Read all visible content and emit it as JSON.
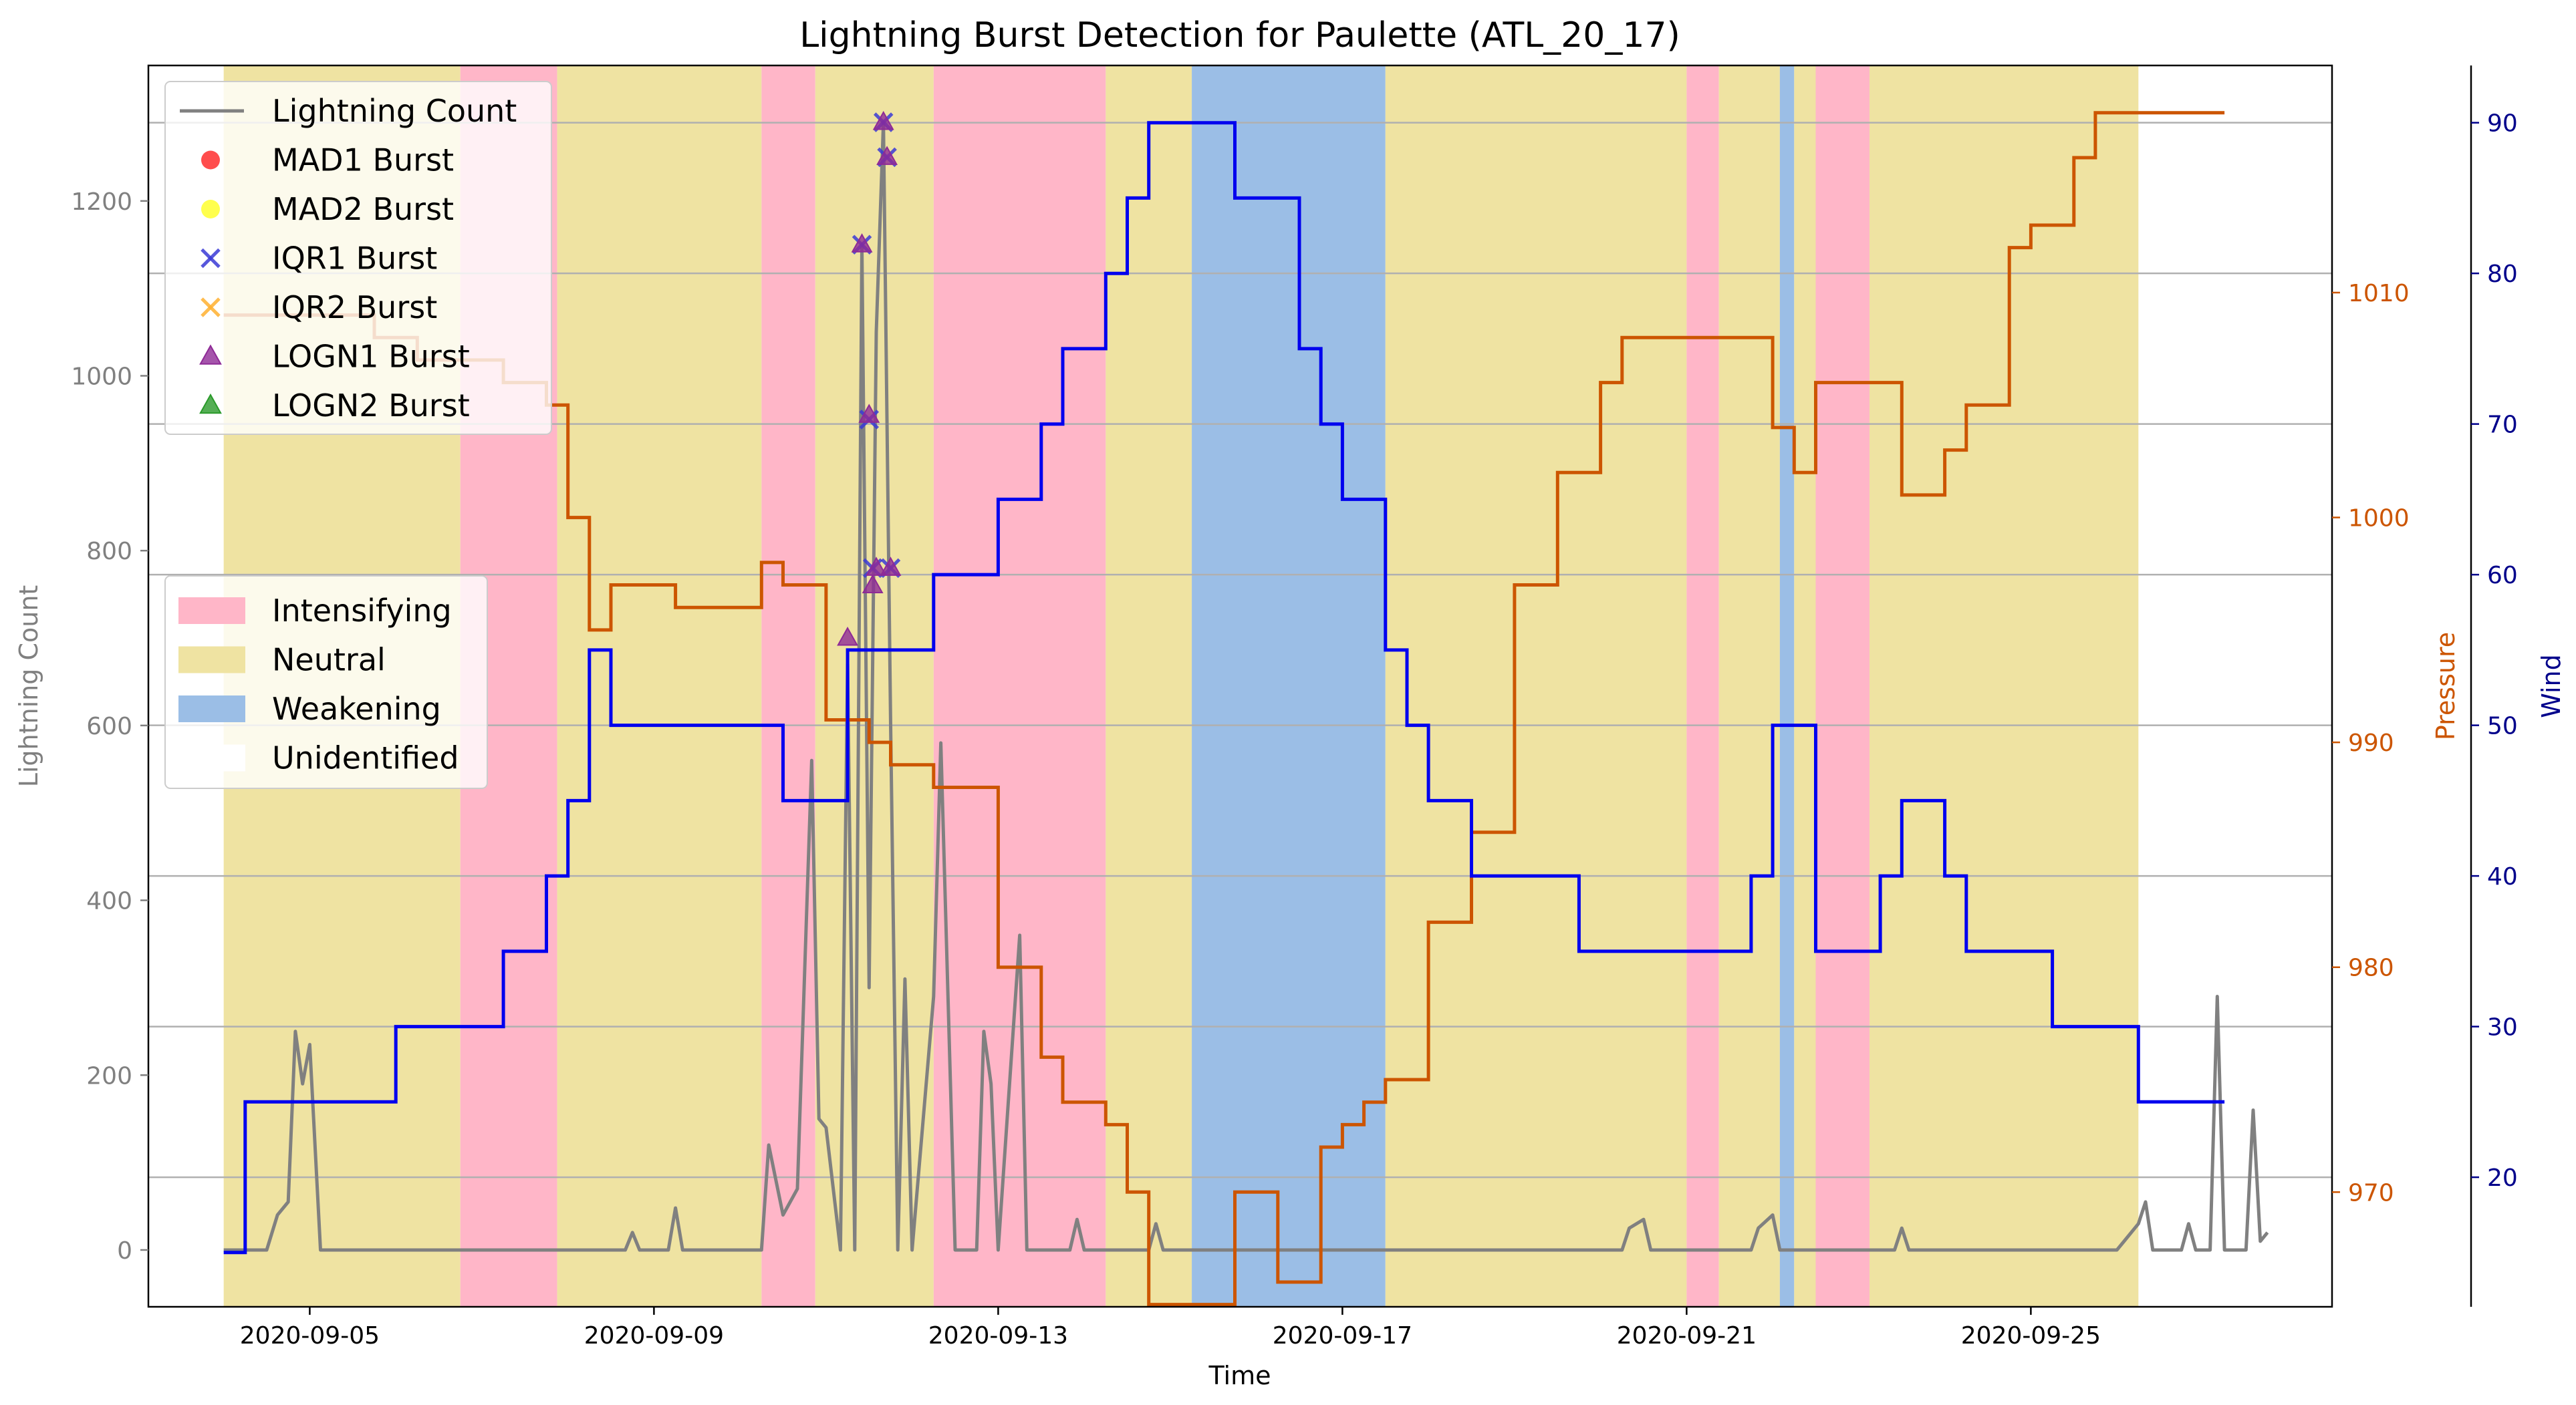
{
  "chart_data": {
    "type": "line",
    "title": "Lightning Burst Detection for Paulette (ATL_20_17)",
    "xlabel": "Time",
    "ylabel_left": "Lightning Count",
    "ylabel_pressure": "Pressure",
    "ylabel_wind": "Wind",
    "x_range": [
      "2020-09-03 03:00",
      "2020-09-28 12:00"
    ],
    "x_ticks": [
      "2020-09-05",
      "2020-09-09",
      "2020-09-13",
      "2020-09-17",
      "2020-09-21",
      "2020-09-25"
    ],
    "y_left": {
      "range": [
        -65,
        1355
      ],
      "ticks": [
        0,
        200,
        400,
        600,
        800,
        1000,
        1200
      ]
    },
    "y_pressure": {
      "range": [
        964.9,
        1020.1
      ],
      "ticks": [
        970,
        980,
        990,
        1000,
        1010
      ]
    },
    "y_wind": {
      "range": [
        11.4,
        93.8
      ],
      "ticks": [
        20,
        30,
        40,
        50,
        60,
        70,
        80,
        90
      ]
    },
    "grid": "horizontal lines at wind ticks",
    "legend_series_location": "upper-left",
    "legend_phase_location": "center-left",
    "colors": {
      "lightning": "#808080",
      "pressure": "#cc5500",
      "wind": "#0000ee",
      "intensifying": "#ffb6c8",
      "neutral": "#efe3a2",
      "weakening": "#9bbee6",
      "mad1": "#ff2020",
      "mad2": "#ffff20",
      "iqr1": "#3a3ad6",
      "iqr2": "#ffb030",
      "logn1": "#8e2a96",
      "logn2": "#2a9a2a"
    },
    "legend": {
      "series": [
        {
          "label": "Lightning Count",
          "marker": "line",
          "color": "#808080"
        },
        {
          "label": "MAD1 Burst",
          "marker": "circle",
          "color": "#ff2020"
        },
        {
          "label": "MAD2 Burst",
          "marker": "circle",
          "color": "#ffff20"
        },
        {
          "label": "IQR1 Burst",
          "marker": "x",
          "color": "#3a3ad6"
        },
        {
          "label": "IQR2 Burst",
          "marker": "x",
          "color": "#ffb030"
        },
        {
          "label": "LOGN1 Burst",
          "marker": "triangle",
          "color": "#8e2a96"
        },
        {
          "label": "LOGN2 Burst",
          "marker": "triangle",
          "color": "#2a9a2a"
        }
      ],
      "phases": [
        {
          "label": "Intensifying",
          "color": "#ffb6c8"
        },
        {
          "label": "Neutral",
          "color": "#efe3a2"
        },
        {
          "label": "Weakening",
          "color": "#9bbee6"
        },
        {
          "label": "Unidentified",
          "color": "#ffffff"
        }
      ]
    },
    "phases": [
      {
        "phase": "Neutral",
        "start": "2020-09-04 00:00",
        "end": "2020-09-06 18:00"
      },
      {
        "phase": "Intensifying",
        "start": "2020-09-06 18:00",
        "end": "2020-09-07 21:00"
      },
      {
        "phase": "Neutral",
        "start": "2020-09-07 21:00",
        "end": "2020-09-10 06:00"
      },
      {
        "phase": "Intensifying",
        "start": "2020-09-10 06:00",
        "end": "2020-09-10 21:00"
      },
      {
        "phase": "Neutral",
        "start": "2020-09-10 21:00",
        "end": "2020-09-12 06:00"
      },
      {
        "phase": "Intensifying",
        "start": "2020-09-12 06:00",
        "end": "2020-09-14 06:00"
      },
      {
        "phase": "Neutral",
        "start": "2020-09-14 06:00",
        "end": "2020-09-15 06:00"
      },
      {
        "phase": "Weakening",
        "start": "2020-09-15 06:00",
        "end": "2020-09-17 12:00"
      },
      {
        "phase": "Neutral",
        "start": "2020-09-17 12:00",
        "end": "2020-09-21 00:00"
      },
      {
        "phase": "Intensifying",
        "start": "2020-09-21 00:00",
        "end": "2020-09-21 09:00"
      },
      {
        "phase": "Neutral",
        "start": "2020-09-21 09:00",
        "end": "2020-09-22 02:00"
      },
      {
        "phase": "Weakening",
        "start": "2020-09-22 02:00",
        "end": "2020-09-22 06:00"
      },
      {
        "phase": "Neutral",
        "start": "2020-09-22 06:00",
        "end": "2020-09-22 12:00"
      },
      {
        "phase": "Intensifying",
        "start": "2020-09-22 12:00",
        "end": "2020-09-23 03:00"
      },
      {
        "phase": "Neutral",
        "start": "2020-09-23 03:00",
        "end": "2020-09-26 06:00"
      }
    ],
    "wind": [
      [
        "2020-09-04 00:00",
        15
      ],
      [
        "2020-09-04 06:00",
        25
      ],
      [
        "2020-09-06 00:00",
        30
      ],
      [
        "2020-09-07 06:00",
        35
      ],
      [
        "2020-09-07 18:00",
        40
      ],
      [
        "2020-09-08 00:00",
        45
      ],
      [
        "2020-09-08 06:00",
        55
      ],
      [
        "2020-09-08 12:00",
        50
      ],
      [
        "2020-09-10 12:00",
        45
      ],
      [
        "2020-09-11 06:00",
        55
      ],
      [
        "2020-09-12 06:00",
        60
      ],
      [
        "2020-09-13 00:00",
        65
      ],
      [
        "2020-09-13 12:00",
        70
      ],
      [
        "2020-09-13 18:00",
        75
      ],
      [
        "2020-09-14 06:00",
        80
      ],
      [
        "2020-09-14 12:00",
        85
      ],
      [
        "2020-09-14 18:00",
        90
      ],
      [
        "2020-09-15 18:00",
        85
      ],
      [
        "2020-09-16 12:00",
        75
      ],
      [
        "2020-09-16 18:00",
        70
      ],
      [
        "2020-09-17 00:00",
        65
      ],
      [
        "2020-09-17 12:00",
        55
      ],
      [
        "2020-09-17 18:00",
        50
      ],
      [
        "2020-09-18 00:00",
        45
      ],
      [
        "2020-09-18 12:00",
        40
      ],
      [
        "2020-09-19 18:00",
        35
      ],
      [
        "2020-09-21 18:00",
        40
      ],
      [
        "2020-09-22 00:00",
        50
      ],
      [
        "2020-09-22 12:00",
        35
      ],
      [
        "2020-09-23 06:00",
        40
      ],
      [
        "2020-09-23 12:00",
        45
      ],
      [
        "2020-09-24 00:00",
        40
      ],
      [
        "2020-09-24 06:00",
        35
      ],
      [
        "2020-09-25 06:00",
        30
      ],
      [
        "2020-09-26 06:00",
        25
      ],
      [
        "2020-09-27 06:00",
        25
      ]
    ],
    "pressure": [
      [
        "2020-09-04 00:00",
        1009
      ],
      [
        "2020-09-05 18:00",
        1008
      ],
      [
        "2020-09-06 06:00",
        1007
      ],
      [
        "2020-09-07 06:00",
        1006
      ],
      [
        "2020-09-07 18:00",
        1005
      ],
      [
        "2020-09-08 00:00",
        1000
      ],
      [
        "2020-09-08 06:00",
        995
      ],
      [
        "2020-09-08 12:00",
        997
      ],
      [
        "2020-09-09 06:00",
        996
      ],
      [
        "2020-09-10 06:00",
        998
      ],
      [
        "2020-09-10 12:00",
        997
      ],
      [
        "2020-09-11 00:00",
        991
      ],
      [
        "2020-09-11 12:00",
        990
      ],
      [
        "2020-09-11 18:00",
        989
      ],
      [
        "2020-09-12 06:00",
        988
      ],
      [
        "2020-09-13 00:00",
        980
      ],
      [
        "2020-09-13 12:00",
        976
      ],
      [
        "2020-09-13 18:00",
        974
      ],
      [
        "2020-09-14 06:00",
        973
      ],
      [
        "2020-09-14 12:00",
        970
      ],
      [
        "2020-09-14 18:00",
        965
      ],
      [
        "2020-09-15 18:00",
        970
      ],
      [
        "2020-09-16 06:00",
        966
      ],
      [
        "2020-09-16 18:00",
        972
      ],
      [
        "2020-09-17 00:00",
        973
      ],
      [
        "2020-09-17 06:00",
        974
      ],
      [
        "2020-09-17 12:00",
        975
      ],
      [
        "2020-09-18 00:00",
        982
      ],
      [
        "2020-09-18 12:00",
        986
      ],
      [
        "2020-09-19 00:00",
        997
      ],
      [
        "2020-09-19 12:00",
        1002
      ],
      [
        "2020-09-20 00:00",
        1006
      ],
      [
        "2020-09-20 06:00",
        1008
      ],
      [
        "2020-09-22 00:00",
        1004
      ],
      [
        "2020-09-22 06:00",
        1002
      ],
      [
        "2020-09-22 12:00",
        1006
      ],
      [
        "2020-09-23 12:00",
        1001
      ],
      [
        "2020-09-24 00:00",
        1003
      ],
      [
        "2020-09-24 06:00",
        1005
      ],
      [
        "2020-09-24 18:00",
        1012
      ],
      [
        "2020-09-25 00:00",
        1013
      ],
      [
        "2020-09-25 12:00",
        1016
      ],
      [
        "2020-09-25 18:00",
        1018
      ],
      [
        "2020-09-27 06:00",
        1018
      ]
    ],
    "lightning_peaks": [
      [
        "2020-09-04 00:00",
        0
      ],
      [
        "2020-09-04 12:00",
        0
      ],
      [
        "2020-09-04 15:00",
        40
      ],
      [
        "2020-09-04 18:00",
        55
      ],
      [
        "2020-09-04 20:00",
        250
      ],
      [
        "2020-09-04 22:00",
        190
      ],
      [
        "2020-09-05 00:00",
        235
      ],
      [
        "2020-09-05 03:00",
        0
      ],
      [
        "2020-09-08 16:00",
        0
      ],
      [
        "2020-09-08 18:00",
        20
      ],
      [
        "2020-09-08 20:00",
        0
      ],
      [
        "2020-09-09 04:00",
        0
      ],
      [
        "2020-09-09 06:00",
        48
      ],
      [
        "2020-09-09 08:00",
        0
      ],
      [
        "2020-09-10 06:00",
        0
      ],
      [
        "2020-09-10 08:00",
        120
      ],
      [
        "2020-09-10 12:00",
        40
      ],
      [
        "2020-09-10 16:00",
        70
      ],
      [
        "2020-09-10 20:00",
        560
      ],
      [
        "2020-09-10 22:00",
        150
      ],
      [
        "2020-09-11 00:00",
        140
      ],
      [
        "2020-09-11 04:00",
        0
      ],
      [
        "2020-09-11 06:00",
        670
      ],
      [
        "2020-09-11 08:00",
        0
      ],
      [
        "2020-09-11 10:00",
        1150
      ],
      [
        "2020-09-11 12:00",
        300
      ],
      [
        "2020-09-11 14:00",
        1050
      ],
      [
        "2020-09-11 16:00",
        1290
      ],
      [
        "2020-09-11 18:00",
        600
      ],
      [
        "2020-09-11 20:00",
        0
      ],
      [
        "2020-09-11 22:00",
        310
      ],
      [
        "2020-09-12 00:00",
        0
      ],
      [
        "2020-09-12 06:00",
        290
      ],
      [
        "2020-09-12 08:00",
        580
      ],
      [
        "2020-09-12 12:00",
        0
      ],
      [
        "2020-09-12 18:00",
        0
      ],
      [
        "2020-09-12 20:00",
        250
      ],
      [
        "2020-09-12 22:00",
        190
      ],
      [
        "2020-09-13 00:00",
        0
      ],
      [
        "2020-09-13 06:00",
        360
      ],
      [
        "2020-09-13 08:00",
        0
      ],
      [
        "2020-09-13 20:00",
        0
      ],
      [
        "2020-09-13 22:00",
        35
      ],
      [
        "2020-09-14 00:00",
        0
      ],
      [
        "2020-09-14 18:00",
        0
      ],
      [
        "2020-09-14 20:00",
        30
      ],
      [
        "2020-09-14 22:00",
        0
      ],
      [
        "2020-09-20 06:00",
        0
      ],
      [
        "2020-09-20 08:00",
        25
      ],
      [
        "2020-09-20 12:00",
        35
      ],
      [
        "2020-09-20 14:00",
        0
      ],
      [
        "2020-09-21 18:00",
        0
      ],
      [
        "2020-09-21 20:00",
        25
      ],
      [
        "2020-09-22 00:00",
        40
      ],
      [
        "2020-09-22 02:00",
        0
      ],
      [
        "2020-09-23 10:00",
        0
      ],
      [
        "2020-09-23 12:00",
        25
      ],
      [
        "2020-09-23 14:00",
        0
      ],
      [
        "2020-09-26 00:00",
        0
      ],
      [
        "2020-09-26 02:00",
        10
      ],
      [
        "2020-09-26 06:00",
        30
      ],
      [
        "2020-09-26 08:00",
        55
      ],
      [
        "2020-09-26 10:00",
        0
      ],
      [
        "2020-09-26 18:00",
        0
      ],
      [
        "2020-09-26 20:00",
        30
      ],
      [
        "2020-09-26 22:00",
        0
      ],
      [
        "2020-09-27 02:00",
        0
      ],
      [
        "2020-09-27 04:00",
        290
      ],
      [
        "2020-09-27 06:00",
        0
      ],
      [
        "2020-09-27 12:00",
        0
      ],
      [
        "2020-09-27 14:00",
        160
      ],
      [
        "2020-09-27 16:00",
        10
      ],
      [
        "2020-09-27 18:00",
        20
      ]
    ],
    "bursts": [
      {
        "method": "IQR1",
        "time": "2020-09-11 10:00",
        "value": 1150
      },
      {
        "method": "IQR1",
        "time": "2020-09-11 12:00",
        "value": 950
      },
      {
        "method": "IQR1",
        "time": "2020-09-11 13:00",
        "value": 780
      },
      {
        "method": "IQR1",
        "time": "2020-09-11 16:00",
        "value": 1290
      },
      {
        "method": "IQR1",
        "time": "2020-09-11 17:00",
        "value": 1250
      },
      {
        "method": "IQR1",
        "time": "2020-09-11 18:00",
        "value": 780
      },
      {
        "method": "LOGN1",
        "time": "2020-09-11 06:00",
        "value": 700
      },
      {
        "method": "LOGN1",
        "time": "2020-09-11 10:00",
        "value": 1150
      },
      {
        "method": "LOGN1",
        "time": "2020-09-11 12:00",
        "value": 955
      },
      {
        "method": "LOGN1",
        "time": "2020-09-11 13:00",
        "value": 760
      },
      {
        "method": "LOGN1",
        "time": "2020-09-11 14:00",
        "value": 780
      },
      {
        "method": "LOGN1",
        "time": "2020-09-11 16:00",
        "value": 1290
      },
      {
        "method": "LOGN1",
        "time": "2020-09-11 17:00",
        "value": 1250
      },
      {
        "method": "LOGN1",
        "time": "2020-09-11 18:00",
        "value": 780
      }
    ]
  }
}
